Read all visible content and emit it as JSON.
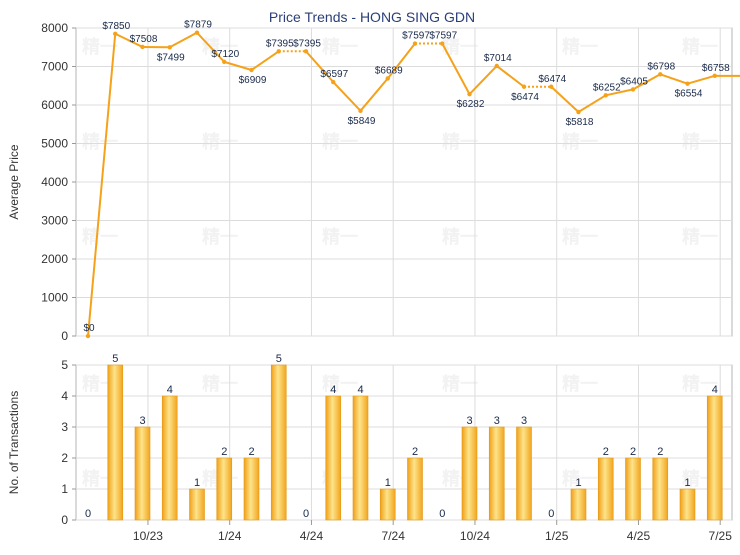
{
  "chart_data": [
    {
      "type": "line",
      "title": "Price Trends - HONG SING GDN",
      "ylabel": "Average Price",
      "ylim": [
        0,
        8000
      ],
      "yticks": [
        0,
        1000,
        2000,
        3000,
        4000,
        5000,
        6000,
        7000,
        8000
      ],
      "x_index": [
        0,
        1,
        2,
        3,
        4,
        5,
        6,
        7,
        8,
        9,
        10,
        11,
        12,
        13,
        14,
        15,
        16,
        17,
        18,
        19,
        20,
        21,
        22,
        23,
        24
      ],
      "values": [
        0,
        7850,
        7508,
        7499,
        7879,
        7120,
        6909,
        7395,
        7395,
        6597,
        5849,
        6689,
        7597,
        7597,
        6282,
        7014,
        6474,
        6474,
        5818,
        6252,
        6405,
        6798,
        6554,
        6758,
        6758
      ],
      "data_labels": [
        "$0",
        "$7850",
        "$7508",
        "$7499",
        "$7879",
        "$7120",
        "$6909",
        "$7395",
        "$7395",
        "$6597",
        "$5849",
        "$6689",
        "$7597",
        "$7597",
        "$6282",
        "$7014",
        "$6474",
        "$6474",
        "$5818",
        "$6252",
        "$6405",
        "$6798",
        "$6554",
        "$6758",
        ""
      ],
      "dashed_segments": [
        [
          7,
          8
        ],
        [
          12,
          13
        ],
        [
          16,
          17
        ]
      ],
      "color": "#f5a21a",
      "grid": true
    },
    {
      "type": "bar",
      "ylabel": "No. of Transactions",
      "ylim": [
        0,
        5
      ],
      "yticks": [
        0,
        1,
        2,
        3,
        4,
        5
      ],
      "x_index": [
        0,
        1,
        2,
        3,
        4,
        5,
        6,
        7,
        8,
        9,
        10,
        11,
        12,
        13,
        14,
        15,
        16,
        17,
        18,
        19,
        20,
        21,
        22,
        23,
        24
      ],
      "values": [
        0,
        5,
        3,
        4,
        1,
        2,
        2,
        5,
        0,
        4,
        4,
        1,
        2,
        0,
        3,
        3,
        3,
        0,
        1,
        2,
        2,
        2,
        1,
        4,
        null
      ],
      "color": "#f5a21a",
      "grid": true
    }
  ],
  "x_axis": {
    "ticks": [
      {
        "label": "10/23",
        "index": 2.2
      },
      {
        "label": "1/24",
        "index": 5.2
      },
      {
        "label": "4/24",
        "index": 8.2
      },
      {
        "label": "7/24",
        "index": 11.2
      },
      {
        "label": "10/24",
        "index": 14.2
      },
      {
        "label": "1/25",
        "index": 17.2
      },
      {
        "label": "4/25",
        "index": 20.2
      },
      {
        "label": "7/25",
        "index": 23.2
      }
    ]
  },
  "watermark": "精一"
}
